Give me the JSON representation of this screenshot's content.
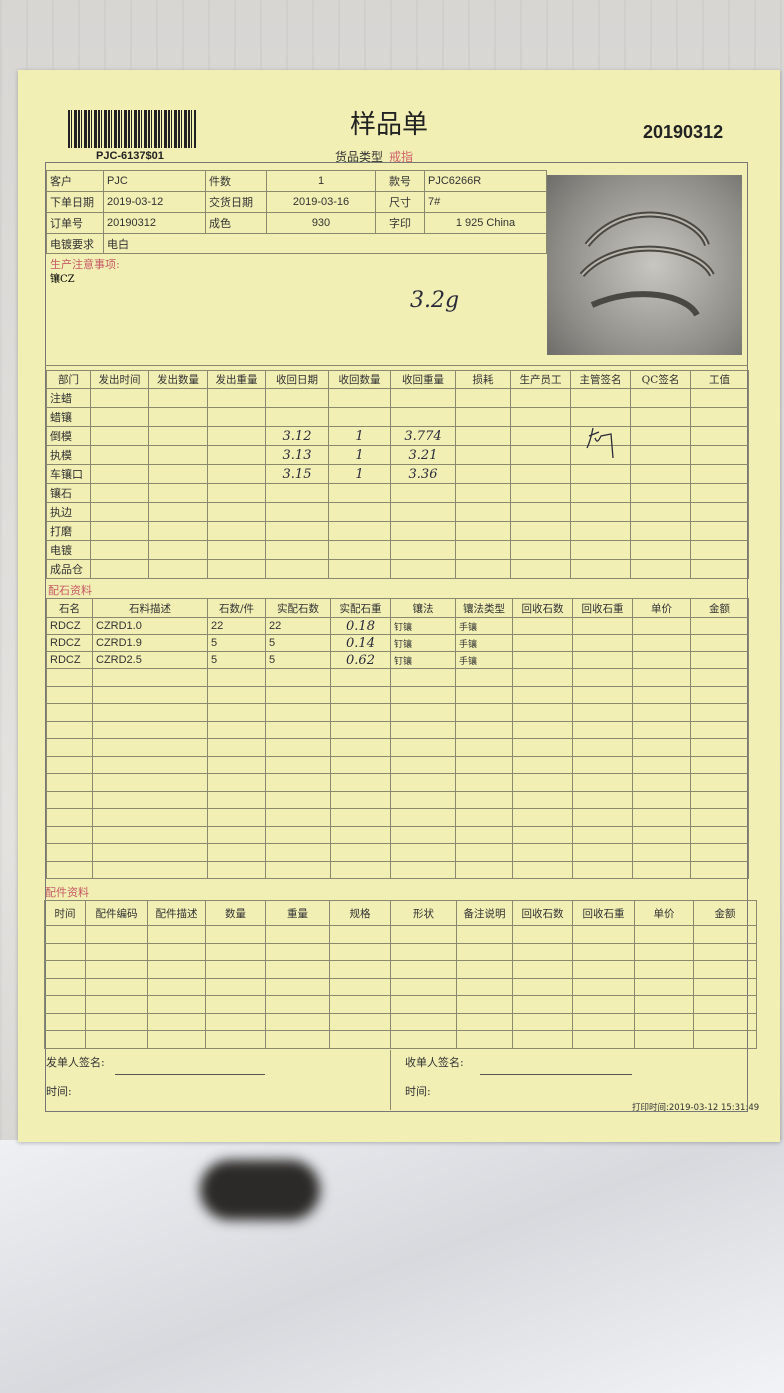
{
  "header": {
    "title": "样品单",
    "order_number": "20190312",
    "barcode_text": "PJC-6137$01",
    "product_type_label": "货品类型",
    "product_type_value": "戒指"
  },
  "info": {
    "customer_label": "客户",
    "customer": "PJC",
    "pieces_label": "件数",
    "pieces": "1",
    "style_label": "款号",
    "style": "PJC6266R",
    "order_date_label": "下单日期",
    "order_date": "2019-03-12",
    "delivery_date_label": "交货日期",
    "delivery_date": "2019-03-16",
    "size_label": "尺寸",
    "size": "7#",
    "order_no_label": "订单号",
    "order_no": "20190312",
    "purity_label": "成色",
    "purity": "930",
    "stamp_label": "字印",
    "stamp": "1 925 China",
    "plating_label": "电镀要求",
    "plating": "电白",
    "notes_label": "生产注意事项:",
    "notes": "镶CZ",
    "handwritten_weight": "3.2g"
  },
  "production": {
    "columns": [
      "部门",
      "发出时间",
      "发出数量",
      "发出重量",
      "收回日期",
      "收回数量",
      "收回重量",
      "损耗",
      "生产员工",
      "主管签名",
      "QC签名",
      "工值"
    ],
    "rows": [
      [
        "注蜡",
        "",
        "",
        "",
        "",
        "",
        "",
        "",
        "",
        "",
        "",
        ""
      ],
      [
        "蜡镶",
        "",
        "",
        "",
        "",
        "",
        "",
        "",
        "",
        "",
        "",
        ""
      ],
      [
        "倒模",
        "",
        "",
        "",
        "3.12",
        "1",
        "3.774",
        "",
        "",
        "",
        "",
        ""
      ],
      [
        "执模",
        "",
        "",
        "",
        "3.13",
        "1",
        "3.21",
        "",
        "",
        "",
        "",
        ""
      ],
      [
        "车镶口",
        "",
        "",
        "",
        "3.15",
        "1",
        "3.36",
        "",
        "",
        "",
        "",
        ""
      ],
      [
        "镶石",
        "",
        "",
        "",
        "",
        "",
        "",
        "",
        "",
        "",
        "",
        ""
      ],
      [
        "执边",
        "",
        "",
        "",
        "",
        "",
        "",
        "",
        "",
        "",
        "",
        ""
      ],
      [
        "打磨",
        "",
        "",
        "",
        "",
        "",
        "",
        "",
        "",
        "",
        "",
        ""
      ],
      [
        "电镀",
        "",
        "",
        "",
        "",
        "",
        "",
        "",
        "",
        "",
        "",
        ""
      ],
      [
        "成品仓",
        "",
        "",
        "",
        "",
        "",
        "",
        "",
        "",
        "",
        "",
        ""
      ]
    ]
  },
  "stones": {
    "section_label": "配石资料",
    "columns": [
      "石名",
      "石料描述",
      "石数/件",
      "实配石数",
      "实配石重",
      "镶法",
      "镶法类型",
      "回收石数",
      "回收石重",
      "单价",
      "金额"
    ],
    "rows": [
      [
        "RDCZ",
        "CZRD1.0",
        "22",
        "22",
        "0.18",
        "钉镶",
        "手镶",
        "",
        "",
        "",
        ""
      ],
      [
        "RDCZ",
        "CZRD1.9",
        "5",
        "5",
        "0.14",
        "钉镶",
        "手镶",
        "",
        "",
        "",
        ""
      ],
      [
        "RDCZ",
        "CZRD2.5",
        "5",
        "5",
        "0.62",
        "钉镶",
        "手镶",
        "",
        "",
        "",
        ""
      ]
    ],
    "empty_rows": 12
  },
  "parts": {
    "section_label": "配件资料",
    "columns": [
      "时间",
      "配件编码",
      "配件描述",
      "数量",
      "重量",
      "规格",
      "形状",
      "备注说明",
      "回收石数",
      "回收石重",
      "单价",
      "金额"
    ],
    "empty_rows": 7
  },
  "footer": {
    "sender_label": "发单人签名:",
    "receiver_label": "收单人签名:",
    "time_label": "时间:",
    "print_time": "打印时间:2019-03-12 15:31:49"
  }
}
